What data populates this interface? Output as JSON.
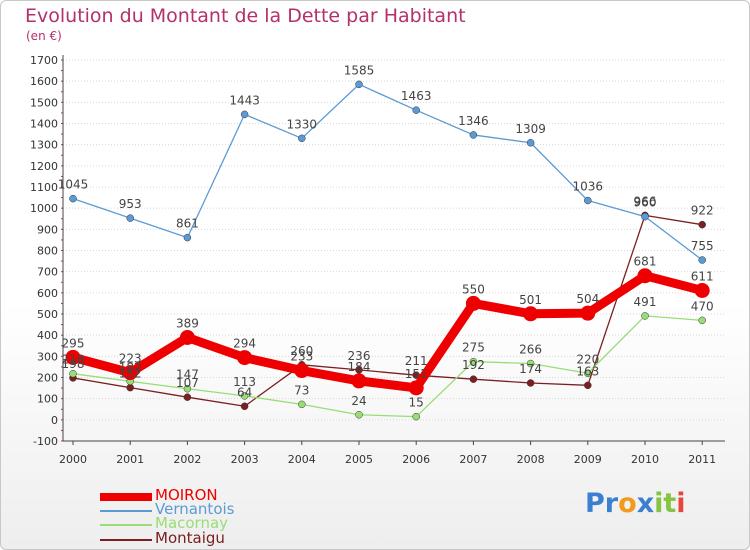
{
  "chart_data": {
    "type": "line",
    "title": "Evolution du Montant de la Dette par Habitant",
    "unit": "(en €)",
    "categories": [
      "2000",
      "2001",
      "2002",
      "2003",
      "2004",
      "2005",
      "2006",
      "2007",
      "2008",
      "2009",
      "2010",
      "2011"
    ],
    "y_ticks": [
      "-100",
      "0",
      "100",
      "200",
      "300",
      "400",
      "500",
      "600",
      "700",
      "800",
      "900",
      "1000",
      "1100",
      "1200",
      "1300",
      "1400",
      "1500",
      "1600",
      "1700"
    ],
    "ylim": [
      -100,
      1700
    ],
    "grid": "horizontal dotted",
    "legend_position": "bottom-left",
    "series": [
      {
        "name": "MOIRON",
        "color": "#ee0000",
        "values": [
          295,
          223,
          389,
          294,
          233,
          184,
          151,
          550,
          501,
          504,
          681,
          611
        ],
        "labels": [
          "295",
          "223",
          "389",
          "294",
          "233",
          "184",
          "151",
          "550",
          "501",
          "504",
          "681",
          "611"
        ]
      },
      {
        "name": "Vernantois",
        "color": "#5b9bd5",
        "values": [
          1045,
          953,
          861,
          1443,
          1330,
          1585,
          1463,
          1346,
          1309,
          1036,
          960,
          755
        ],
        "labels": [
          "1045",
          "953",
          "861",
          "1443",
          "1330",
          "1585",
          "1463",
          "1346",
          "1309",
          "1036",
          "960",
          "755"
        ]
      },
      {
        "name": "Macornay",
        "color": "#99dd77",
        "values": [
          218,
          182,
          147,
          113,
          73,
          24,
          15,
          275,
          266,
          220,
          491,
          470
        ],
        "labels": [
          "218",
          "182",
          "147",
          "113",
          "73",
          "24",
          "15",
          "275",
          "266",
          "220",
          "491",
          "470"
        ]
      },
      {
        "name": "Montaigu",
        "color": "#7b2020",
        "values": [
          198,
          152,
          107,
          64,
          260,
          236,
          211,
          192,
          174,
          163,
          966,
          922
        ],
        "labels": [
          "198",
          "152",
          "107",
          "64",
          "260",
          "236",
          "211",
          "192",
          "174",
          "163",
          "966",
          "922"
        ]
      }
    ]
  },
  "logo": {
    "letters": [
      "P",
      "r",
      "o",
      "x",
      "i",
      "t",
      "i"
    ],
    "colors": [
      "#3a7fd0",
      "#3a7fd0",
      "#f29a1c",
      "#3a7fd0",
      "#84c440",
      "#84c440",
      "#e8453c"
    ]
  }
}
